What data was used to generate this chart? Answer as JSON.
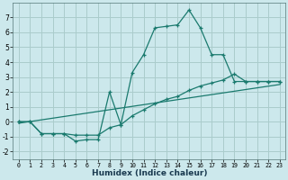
{
  "xlabel": "Humidex (Indice chaleur)",
  "bg_color": "#cce8ec",
  "grid_color": "#aacccc",
  "line_color": "#1a7a6e",
  "line1_x": [
    0,
    1,
    2,
    3,
    4,
    5,
    6,
    7,
    8,
    9,
    10,
    11,
    12,
    13,
    14,
    15,
    16,
    17,
    18,
    19,
    20,
    21,
    22,
    23
  ],
  "line1_y": [
    0.0,
    0.0,
    -0.8,
    -0.8,
    -0.8,
    -1.3,
    -1.2,
    -1.2,
    2.0,
    -0.2,
    3.3,
    4.5,
    6.3,
    6.4,
    6.5,
    7.5,
    6.3,
    4.5,
    4.5,
    2.7,
    2.7,
    2.7,
    2.7,
    2.7
  ],
  "line2_x": [
    0,
    1,
    2,
    3,
    4,
    5,
    6,
    7,
    8,
    9,
    10,
    11,
    12,
    13,
    14,
    15,
    16,
    17,
    18,
    19,
    20,
    21,
    22,
    23
  ],
  "line2_y": [
    0.0,
    0.0,
    -0.8,
    -0.8,
    -0.8,
    -0.9,
    -0.9,
    -0.9,
    -0.4,
    -0.2,
    0.4,
    0.8,
    1.2,
    1.5,
    1.7,
    2.1,
    2.4,
    2.6,
    2.8,
    3.2,
    2.7,
    2.7,
    2.7,
    2.7
  ],
  "line3_x": [
    0,
    23
  ],
  "line3_y": [
    -0.1,
    2.5
  ],
  "xlim": [
    -0.5,
    23.5
  ],
  "ylim": [
    -2.5,
    8.0
  ],
  "xticks": [
    0,
    1,
    2,
    3,
    4,
    5,
    6,
    7,
    8,
    9,
    10,
    11,
    12,
    13,
    14,
    15,
    16,
    17,
    18,
    19,
    20,
    21,
    22,
    23
  ],
  "yticks": [
    -2,
    -1,
    0,
    1,
    2,
    3,
    4,
    5,
    6,
    7
  ]
}
